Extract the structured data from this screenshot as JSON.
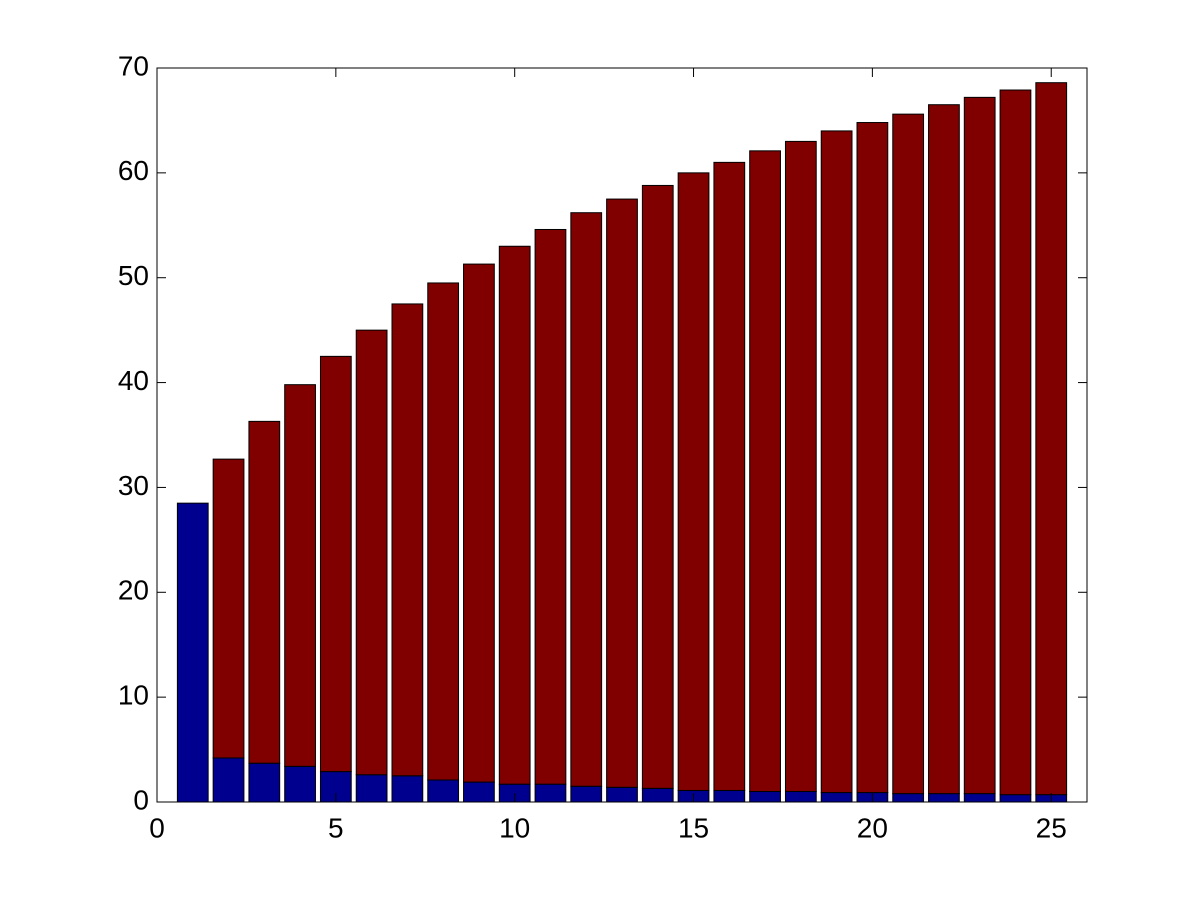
{
  "chart_data": {
    "type": "bar",
    "stacked": true,
    "x": [
      1,
      2,
      3,
      4,
      5,
      6,
      7,
      8,
      9,
      10,
      11,
      12,
      13,
      14,
      15,
      16,
      17,
      18,
      19,
      20,
      21,
      22,
      23,
      24,
      25
    ],
    "series": [
      {
        "color": "#00008f",
        "values": [
          28.5,
          4.2,
          3.7,
          3.4,
          2.9,
          2.6,
          2.5,
          2.1,
          1.9,
          1.7,
          1.7,
          1.5,
          1.4,
          1.3,
          1.1,
          1.1,
          1.0,
          1.0,
          0.9,
          0.9,
          0.8,
          0.8,
          0.8,
          0.7,
          0.7
        ]
      },
      {
        "color": "#800000",
        "values": [
          0,
          28.5,
          32.6,
          36.4,
          39.6,
          42.4,
          45.0,
          47.4,
          49.4,
          51.3,
          52.9,
          54.7,
          56.1,
          57.5,
          58.9,
          59.9,
          61.1,
          62.0,
          63.1,
          63.9,
          64.8,
          65.7,
          66.4,
          67.2,
          67.9
        ]
      }
    ],
    "xlim": [
      0,
      26
    ],
    "xticks": [
      0,
      5,
      10,
      15,
      20,
      25
    ],
    "ylim": [
      0,
      70
    ],
    "yticks": [
      0,
      10,
      20,
      30,
      40,
      50,
      60,
      70
    ],
    "grid": false
  }
}
